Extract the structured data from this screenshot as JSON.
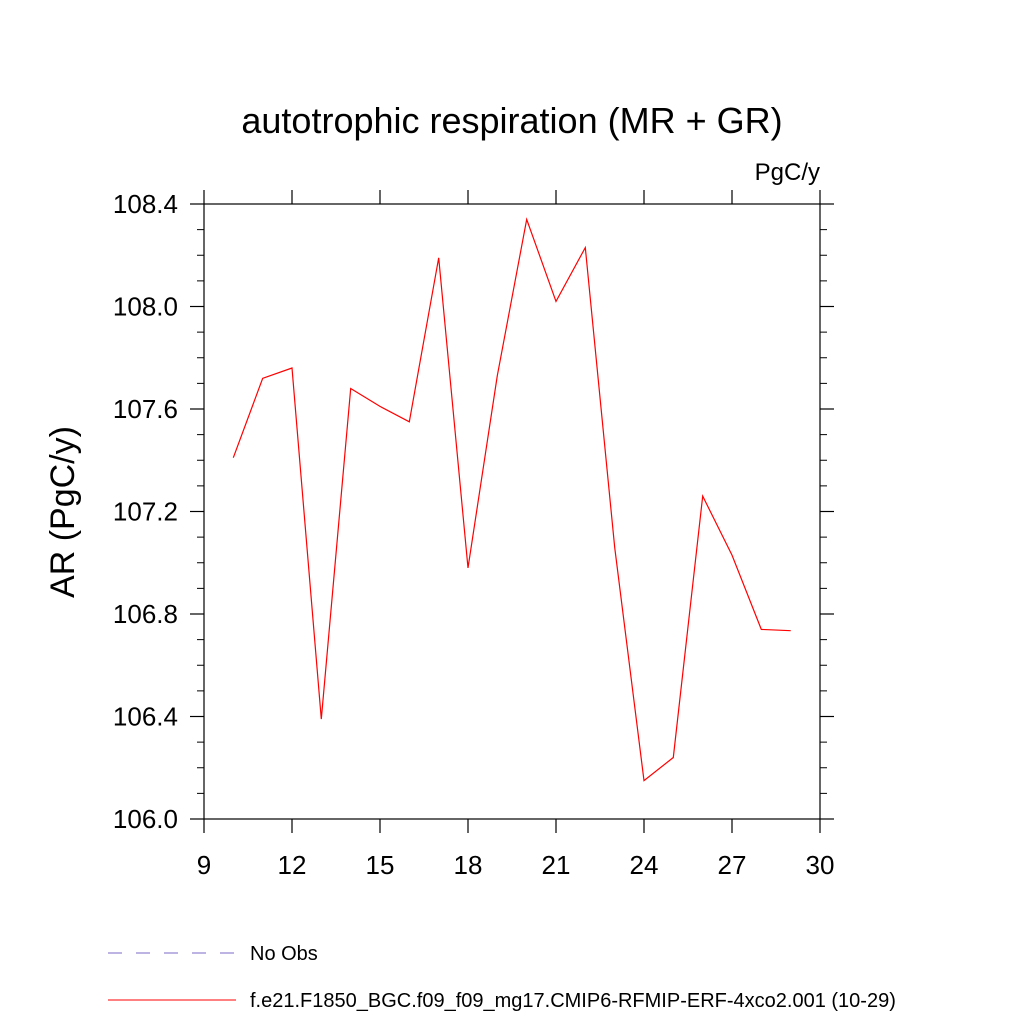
{
  "chart_data": {
    "type": "line",
    "title": "autotrophic respiration (MR + GR)",
    "units_label": "PgC/y",
    "ylabel": "AR  (PgC/y)",
    "xlabel": "",
    "xlim": [
      9,
      30
    ],
    "ylim": [
      106.0,
      108.4
    ],
    "x_ticks": [
      9,
      12,
      15,
      18,
      21,
      24,
      27,
      30
    ],
    "x_tick_labels": [
      "9",
      "12",
      "15",
      "18",
      "21",
      "24",
      "27",
      "30"
    ],
    "y_ticks": [
      106.0,
      106.4,
      106.8,
      107.2,
      107.6,
      108.0,
      108.4
    ],
    "y_tick_labels": [
      "106.0",
      "106.4",
      "106.8",
      "107.2",
      "107.6",
      "108.0",
      "108.4"
    ],
    "grid": false,
    "legend_position": "bottom-left",
    "series": [
      {
        "name": "f.e21.F1850_BGC.f09_f09_mg17.CMIP6-RFMIP-ERF-4xco2.001 (10-29)",
        "color": "#ff0000",
        "style": "solid",
        "x": [
          10,
          11,
          12,
          13,
          14,
          15,
          16,
          17,
          18,
          19,
          20,
          21,
          22,
          23,
          24,
          25,
          26,
          27,
          28,
          29
        ],
        "y": [
          107.41,
          107.72,
          107.76,
          106.39,
          107.68,
          107.61,
          107.55,
          108.19,
          106.98,
          107.73,
          108.34,
          108.02,
          108.23,
          107.06,
          106.15,
          106.24,
          107.26,
          107.03,
          106.74,
          106.735
        ]
      }
    ],
    "legend": [
      {
        "label": "No Obs",
        "color": "#7b68c8",
        "style": "dashed"
      },
      {
        "label": "f.e21.F1850_BGC.f09_f09_mg17.CMIP6-RFMIP-ERF-4xco2.001 (10-29)",
        "color": "#ff0000",
        "style": "solid"
      }
    ]
  }
}
